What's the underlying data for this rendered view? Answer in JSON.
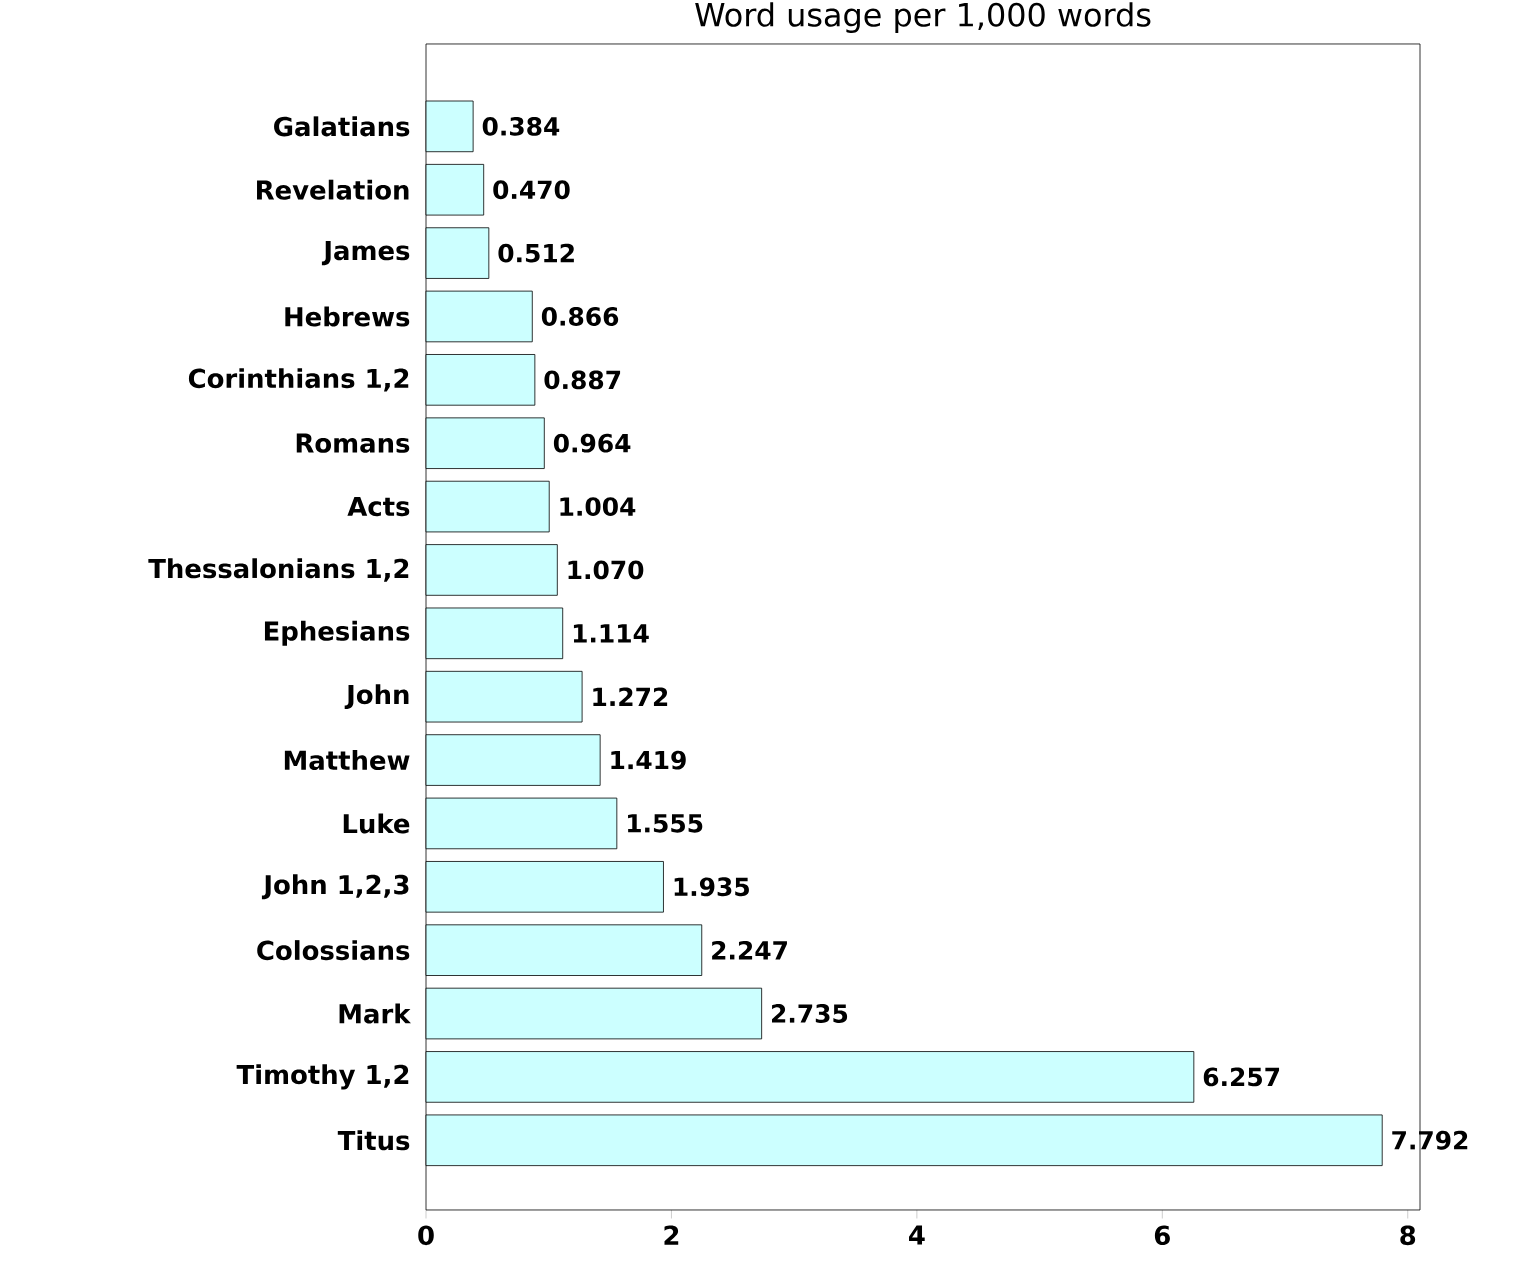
{
  "chart_data": {
    "type": "bar",
    "orientation": "horizontal",
    "title": "Word usage per 1,000 words",
    "categories": [
      "Galatians",
      "Revelation",
      "James",
      "Hebrews",
      "Corinthians 1,2",
      "Romans",
      "Acts",
      "Thessalonians 1,2",
      "Ephesians",
      "John",
      "Matthew",
      "Luke",
      "John 1,2,3",
      "Colossians",
      "Mark",
      "Timothy 1,2",
      "Titus"
    ],
    "values": [
      0.384,
      0.47,
      0.512,
      0.866,
      0.887,
      0.964,
      1.004,
      1.07,
      1.114,
      1.272,
      1.419,
      1.555,
      1.935,
      2.247,
      2.735,
      6.257,
      7.792
    ],
    "value_labels": [
      "0.384",
      "0.470",
      "0.512",
      "0.866",
      "0.887",
      "0.964",
      "1.004",
      "1.070",
      "1.114",
      "1.272",
      "1.419",
      "1.555",
      "1.935",
      "2.247",
      "2.735",
      "6.257",
      "7.792"
    ],
    "color": "#ccffff",
    "xlim": [
      0,
      8.1
    ],
    "xticks": [
      0,
      2,
      4,
      6,
      8
    ]
  }
}
